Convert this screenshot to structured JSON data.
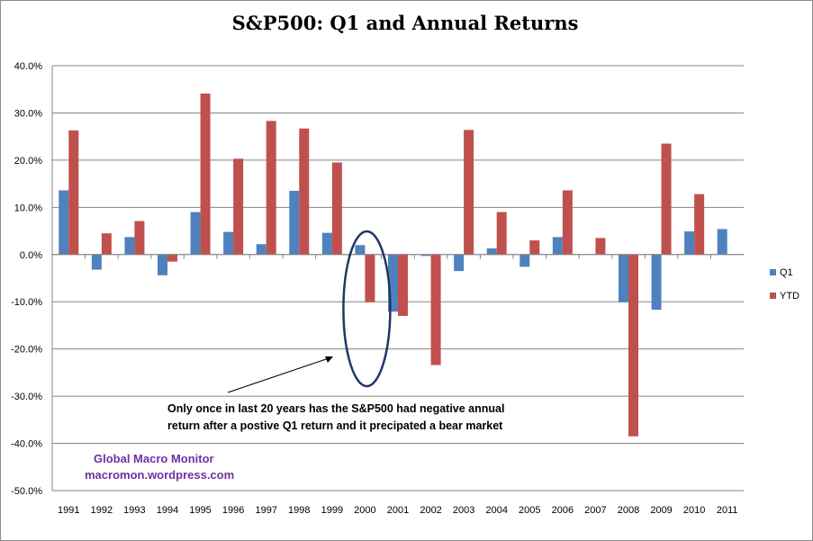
{
  "chart_data": {
    "type": "bar",
    "title": "S&P500:  Q1 and Annual Returns",
    "xlabel": "",
    "ylabel": "",
    "categories": [
      "1991",
      "1992",
      "1993",
      "1994",
      "1995",
      "1996",
      "1997",
      "1998",
      "1999",
      "2000",
      "2001",
      "2002",
      "2003",
      "2004",
      "2005",
      "2006",
      "2007",
      "2008",
      "2009",
      "2010",
      "2011"
    ],
    "series": [
      {
        "name": "Q1",
        "color": "#4f81bd",
        "values": [
          13.6,
          -3.2,
          3.7,
          -4.4,
          9.0,
          4.8,
          2.2,
          13.5,
          4.6,
          2.0,
          -12.1,
          -0.3,
          -3.5,
          1.3,
          -2.6,
          3.7,
          0.0,
          -10.1,
          -11.7,
          4.9,
          5.4
        ]
      },
      {
        "name": "YTD",
        "color": "#c0504d",
        "values": [
          26.3,
          4.5,
          7.1,
          -1.5,
          34.1,
          20.3,
          28.3,
          26.7,
          19.5,
          -10.1,
          -13.0,
          -23.4,
          26.4,
          9.0,
          3.0,
          13.6,
          3.5,
          -38.5,
          23.5,
          12.8,
          null
        ]
      }
    ],
    "ylim": [
      -50,
      40
    ],
    "yticks": [
      "40.0%",
      "30.0%",
      "20.0%",
      "10.0%",
      "0.0%",
      "-10.0%",
      "-20.0%",
      "-30.0%",
      "-40.0%",
      "-50.0%"
    ],
    "grid": true,
    "legend": "right",
    "annotation": {
      "line1": "Only once in last 20  years has the S&P500 had negative annual",
      "line2": "return after a postive Q1 return and it precipated  a bear market",
      "highlight_category": "2000"
    },
    "watermark": {
      "line1": "Global Macro Monitor",
      "line2": "macromon.wordpress.com",
      "color": "#7030a0"
    }
  }
}
